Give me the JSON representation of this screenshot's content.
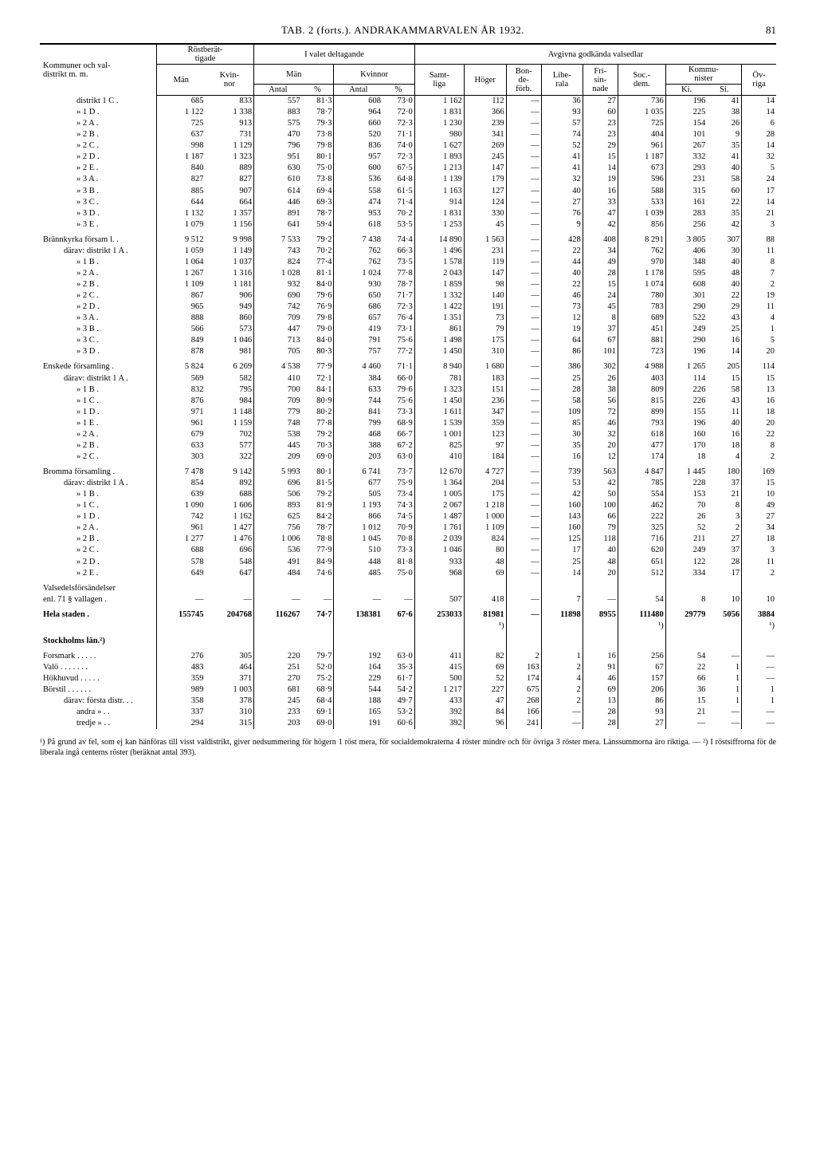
{
  "header": {
    "title": "TAB. 2 (forts.). ANDRAKAMMARVALEN ÅR 1932.",
    "page": "81"
  },
  "thead": {
    "col_kommun": "Kommuner och val-\ndistrikt m. m.",
    "rost": "Röstberät-\ntigade",
    "ivalet": "I valet deltagande",
    "avgivna": "Avgivna godkända valsedlar",
    "man": "Män",
    "kvinnor": "Kvin-\nnor",
    "man2": "Män",
    "kvinnor2": "Kvinnor",
    "antal": "Antal",
    "pct": "%",
    "samt": "Samt-\nliga",
    "hoger": "Höger",
    "bonde": "Bon-\nde-\nförb.",
    "libe": "Libe-\nrala",
    "fri": "Fri-\nsin-\nnade",
    "soc": "Soc.-\ndem.",
    "kommu": "Kommu-\nnister",
    "ov": "Öv-\nriga",
    "ki": "Ki.",
    "si": "Si."
  },
  "rows": [
    {
      "label": "distrikt 1 C .",
      "i": 2,
      "d": [
        "685",
        "833",
        "557",
        "81·3",
        "608",
        "73·0",
        "1 162",
        "112",
        "—",
        "36",
        "27",
        "736",
        "196",
        "41",
        "14"
      ]
    },
    {
      "label": "»      1 D .",
      "i": 2,
      "d": [
        "1 122",
        "1 338",
        "883",
        "78·7",
        "964",
        "72·0",
        "1 831",
        "366",
        "—",
        "93",
        "60",
        "1 035",
        "225",
        "38",
        "14"
      ]
    },
    {
      "label": "»      2 A .",
      "i": 2,
      "d": [
        "725",
        "913",
        "575",
        "79·3",
        "660",
        "72·3",
        "1 230",
        "239",
        "—",
        "57",
        "23",
        "725",
        "154",
        "26",
        "6"
      ]
    },
    {
      "label": "»      2 B .",
      "i": 2,
      "d": [
        "637",
        "731",
        "470",
        "73·8",
        "520",
        "71·1",
        "980",
        "341",
        "—",
        "74",
        "23",
        "404",
        "101",
        "9",
        "28"
      ]
    },
    {
      "label": "»      2 C .",
      "i": 2,
      "d": [
        "998",
        "1 129",
        "796",
        "79·8",
        "836",
        "74·0",
        "1 627",
        "269",
        "—",
        "52",
        "29",
        "961",
        "267",
        "35",
        "14"
      ]
    },
    {
      "label": "»      2 D .",
      "i": 2,
      "d": [
        "1 187",
        "1 323",
        "951",
        "80·1",
        "957",
        "72·3",
        "1 893",
        "245",
        "—",
        "41",
        "15",
        "1 187",
        "332",
        "41",
        "32"
      ]
    },
    {
      "label": "»      2 E .",
      "i": 2,
      "d": [
        "840",
        "889",
        "630",
        "75·0",
        "600",
        "67·5",
        "1 213",
        "147",
        "—",
        "41",
        "14",
        "673",
        "293",
        "40",
        "5"
      ]
    },
    {
      "label": "»      3 A .",
      "i": 2,
      "d": [
        "827",
        "827",
        "610",
        "73·8",
        "536",
        "64·8",
        "1 139",
        "179",
        "—",
        "32",
        "19",
        "596",
        "231",
        "58",
        "24"
      ]
    },
    {
      "label": "»      3 B .",
      "i": 2,
      "d": [
        "885",
        "907",
        "614",
        "69·4",
        "558",
        "61·5",
        "1 163",
        "127",
        "—",
        "40",
        "16",
        "588",
        "315",
        "60",
        "17"
      ]
    },
    {
      "label": "»      3 C .",
      "i": 2,
      "d": [
        "644",
        "664",
        "446",
        "69·3",
        "474",
        "71·4",
        "914",
        "124",
        "—",
        "27",
        "33",
        "533",
        "161",
        "22",
        "14"
      ]
    },
    {
      "label": "»      3 D .",
      "i": 2,
      "d": [
        "1 132",
        "1 357",
        "891",
        "78·7",
        "953",
        "70·2",
        "1 831",
        "330",
        "—",
        "76",
        "47",
        "1 039",
        "283",
        "35",
        "21"
      ]
    },
    {
      "label": "»      3 E .",
      "i": 2,
      "d": [
        "1 079",
        "1 156",
        "641",
        "59·4",
        "618",
        "53·5",
        "1 253",
        "45",
        "—",
        "9",
        "42",
        "856",
        "256",
        "42",
        "3"
      ]
    },
    {
      "label": "Brännkyrka försam l. .",
      "i": 0,
      "gap": true,
      "d": [
        "9 512",
        "9 998",
        "7 533",
        "79·2",
        "7 438",
        "74·4",
        "14 890",
        "1 563",
        "—",
        "428",
        "408",
        "8 291",
        "3 805",
        "307",
        "88"
      ]
    },
    {
      "label": "därav: distrikt 1 A .",
      "i": 1,
      "d": [
        "1 059",
        "1 149",
        "743",
        "70·2",
        "762",
        "66·3",
        "1 496",
        "231",
        "—",
        "22",
        "34",
        "762",
        "406",
        "30",
        "11"
      ]
    },
    {
      "label": "»      1 B .",
      "i": 2,
      "d": [
        "1 064",
        "1 037",
        "824",
        "77·4",
        "762",
        "73·5",
        "1 578",
        "119",
        "—",
        "44",
        "49",
        "970",
        "348",
        "40",
        "8"
      ]
    },
    {
      "label": "»      2 A .",
      "i": 2,
      "d": [
        "1 267",
        "1 316",
        "1 028",
        "81·1",
        "1 024",
        "77·8",
        "2 043",
        "147",
        "—",
        "40",
        "28",
        "1 178",
        "595",
        "48",
        "7"
      ]
    },
    {
      "label": "»      2 B .",
      "i": 2,
      "d": [
        "1 109",
        "1 181",
        "932",
        "84·0",
        "930",
        "78·7",
        "1 859",
        "98",
        "—",
        "22",
        "15",
        "1 074",
        "608",
        "40",
        "2"
      ]
    },
    {
      "label": "»      2 C .",
      "i": 2,
      "d": [
        "867",
        "906",
        "690",
        "79·6",
        "650",
        "71·7",
        "1 332",
        "140",
        "—",
        "46",
        "24",
        "780",
        "301",
        "22",
        "19"
      ]
    },
    {
      "label": "»      2 D .",
      "i": 2,
      "d": [
        "965",
        "949",
        "742",
        "76·9",
        "686",
        "72·3",
        "1 422",
        "191",
        "—",
        "73",
        "45",
        "783",
        "290",
        "29",
        "11"
      ]
    },
    {
      "label": "»      3 A .",
      "i": 2,
      "d": [
        "888",
        "860",
        "709",
        "79·8",
        "657",
        "76·4",
        "1 351",
        "73",
        "—",
        "12",
        "8",
        "689",
        "522",
        "43",
        "4"
      ]
    },
    {
      "label": "»      3 B .",
      "i": 2,
      "d": [
        "566",
        "573",
        "447",
        "79·0",
        "419",
        "73·1",
        "861",
        "79",
        "—",
        "19",
        "37",
        "451",
        "249",
        "25",
        "1"
      ]
    },
    {
      "label": "»      3 C .",
      "i": 2,
      "d": [
        "849",
        "1 046",
        "713",
        "84·0",
        "791",
        "75·6",
        "1 498",
        "175",
        "—",
        "64",
        "67",
        "881",
        "290",
        "16",
        "5"
      ]
    },
    {
      "label": "»      3 D .",
      "i": 2,
      "d": [
        "878",
        "981",
        "705",
        "80·3",
        "757",
        "77·2",
        "1 450",
        "310",
        "—",
        "86",
        "101",
        "723",
        "196",
        "14",
        "20"
      ]
    },
    {
      "label": "Enskede församling .",
      "i": 0,
      "gap": true,
      "d": [
        "5 824",
        "6 269",
        "4 538",
        "77·9",
        "4 460",
        "71·1",
        "8 940",
        "1 680",
        "—",
        "386",
        "302",
        "4 988",
        "1 265",
        "205",
        "114"
      ]
    },
    {
      "label": "därav: distrikt 1 A .",
      "i": 1,
      "d": [
        "569",
        "582",
        "410",
        "72·1",
        "384",
        "66·0",
        "781",
        "183",
        "—",
        "25",
        "26",
        "403",
        "114",
        "15",
        "15"
      ]
    },
    {
      "label": "»      1 B .",
      "i": 2,
      "d": [
        "832",
        "795",
        "700",
        "84·1",
        "633",
        "79·6",
        "1 323",
        "151",
        "—",
        "28",
        "38",
        "809",
        "226",
        "58",
        "13"
      ]
    },
    {
      "label": "»      1 C .",
      "i": 2,
      "d": [
        "876",
        "984",
        "709",
        "80·9",
        "744",
        "75·6",
        "1 450",
        "236",
        "—",
        "58",
        "56",
        "815",
        "226",
        "43",
        "16"
      ]
    },
    {
      "label": "»      1 D .",
      "i": 2,
      "d": [
        "971",
        "1 148",
        "779",
        "80·2",
        "841",
        "73·3",
        "1 611",
        "347",
        "—",
        "109",
        "72",
        "899",
        "155",
        "11",
        "18"
      ]
    },
    {
      "label": "»      1 E .",
      "i": 2,
      "d": [
        "961",
        "1 159",
        "748",
        "77·8",
        "799",
        "68·9",
        "1 539",
        "359",
        "—",
        "85",
        "46",
        "793",
        "196",
        "40",
        "20"
      ]
    },
    {
      "label": "»      2 A .",
      "i": 2,
      "d": [
        "679",
        "702",
        "538",
        "79·2",
        "468",
        "66·7",
        "1 001",
        "123",
        "—",
        "30",
        "32",
        "618",
        "160",
        "16",
        "22"
      ]
    },
    {
      "label": "»      2 B .",
      "i": 2,
      "d": [
        "633",
        "577",
        "445",
        "70·3",
        "388",
        "67·2",
        "825",
        "97",
        "—",
        "35",
        "20",
        "477",
        "170",
        "18",
        "8"
      ]
    },
    {
      "label": "»      2 C .",
      "i": 2,
      "d": [
        "303",
        "322",
        "209",
        "69·0",
        "203",
        "63·0",
        "410",
        "184",
        "—",
        "16",
        "12",
        "174",
        "18",
        "4",
        "2"
      ]
    },
    {
      "label": "Bromma församling .",
      "i": 0,
      "gap": true,
      "d": [
        "7 478",
        "9 142",
        "5 993",
        "80·1",
        "6 741",
        "73·7",
        "12 670",
        "4 727",
        "—",
        "739",
        "563",
        "4 847",
        "1 445",
        "180",
        "169"
      ]
    },
    {
      "label": "därav: distrikt 1 A .",
      "i": 1,
      "d": [
        "854",
        "892",
        "696",
        "81·5",
        "677",
        "75·9",
        "1 364",
        "204",
        "—",
        "53",
        "42",
        "785",
        "228",
        "37",
        "15"
      ]
    },
    {
      "label": "»      1 B .",
      "i": 2,
      "d": [
        "639",
        "688",
        "506",
        "79·2",
        "505",
        "73·4",
        "1 005",
        "175",
        "—",
        "42",
        "50",
        "554",
        "153",
        "21",
        "10"
      ]
    },
    {
      "label": "»      1 C .",
      "i": 2,
      "d": [
        "1 090",
        "1 606",
        "893",
        "81·9",
        "1 193",
        "74·3",
        "2 067",
        "1 218",
        "—",
        "160",
        "100",
        "462",
        "70",
        "8",
        "49"
      ]
    },
    {
      "label": "»      1 D .",
      "i": 2,
      "d": [
        "742",
        "1 162",
        "625",
        "84·2",
        "866",
        "74·5",
        "1 487",
        "1 000",
        "—",
        "143",
        "66",
        "222",
        "26",
        "3",
        "27"
      ]
    },
    {
      "label": "»      2 A .",
      "i": 2,
      "d": [
        "961",
        "1 427",
        "756",
        "78·7",
        "1 012",
        "70·9",
        "1 761",
        "1 109",
        "—",
        "160",
        "79",
        "325",
        "52",
        "2",
        "34"
      ]
    },
    {
      "label": "»      2 B .",
      "i": 2,
      "d": [
        "1 277",
        "1 476",
        "1 006",
        "78·8",
        "1 045",
        "70·8",
        "2 039",
        "824",
        "—",
        "125",
        "118",
        "716",
        "211",
        "27",
        "18"
      ]
    },
    {
      "label": "»      2 C .",
      "i": 2,
      "d": [
        "688",
        "696",
        "536",
        "77·9",
        "510",
        "73·3",
        "1 046",
        "80",
        "—",
        "17",
        "40",
        "620",
        "249",
        "37",
        "3"
      ]
    },
    {
      "label": "»      2 D .",
      "i": 2,
      "d": [
        "578",
        "548",
        "491",
        "84·9",
        "448",
        "81·8",
        "933",
        "48",
        "—",
        "25",
        "48",
        "651",
        "122",
        "28",
        "11"
      ]
    },
    {
      "label": "»      2 E .",
      "i": 2,
      "d": [
        "649",
        "647",
        "484",
        "74·6",
        "485",
        "75·0",
        "968",
        "69",
        "—",
        "14",
        "20",
        "512",
        "334",
        "17",
        "2"
      ]
    },
    {
      "label": "Valsedelsförsändelser",
      "i": 0,
      "gap": true,
      "d": [
        "",
        "",
        "",
        "",
        "",
        "",
        "",
        "",
        "",
        "",
        "",
        "",
        "",
        "",
        ""
      ]
    },
    {
      "label": "enl. 71 § vallagen .",
      "i": 0,
      "d": [
        "—",
        "—",
        "—",
        "—",
        "—",
        "—",
        "507",
        "418",
        "—",
        "7",
        "—",
        "54",
        "8",
        "10",
        "10"
      ]
    },
    {
      "label": "Hela staden .",
      "i": 0,
      "bold": true,
      "gap": true,
      "d": [
        "155745",
        "204768",
        "116267",
        "74·7",
        "138381",
        "67·6",
        "253033",
        "81981",
        "—",
        "11898",
        "8955",
        "111480",
        "29779",
        "5056",
        "3884"
      ]
    },
    {
      "label": "",
      "i": 0,
      "d": [
        "",
        "",
        "",
        "",
        "",
        "",
        "",
        "¹)",
        "",
        "",
        "",
        "¹)",
        "",
        "",
        "¹)"
      ]
    },
    {
      "label": "Stockholms län.²)",
      "i": 0,
      "bold": true,
      "gap": true,
      "d": [
        "",
        "",
        "",
        "",
        "",
        "",
        "",
        "",
        "",
        "",
        "",
        "",
        "",
        "",
        ""
      ]
    },
    {
      "label": "Forsmark . . . . .",
      "i": 0,
      "gap": true,
      "d": [
        "276",
        "305",
        "220",
        "79·7",
        "192",
        "63·0",
        "411",
        "82",
        "2",
        "1",
        "16",
        "256",
        "54",
        "—",
        "—"
      ]
    },
    {
      "label": "Valö . . . . . . .",
      "i": 0,
      "d": [
        "483",
        "464",
        "251",
        "52·0",
        "164",
        "35·3",
        "415",
        "69",
        "163",
        "2",
        "91",
        "67",
        "22",
        "1",
        "—"
      ]
    },
    {
      "label": "Hökhuvud . . . . .",
      "i": 0,
      "d": [
        "359",
        "371",
        "270",
        "75·2",
        "229",
        "61·7",
        "500",
        "52",
        "174",
        "4",
        "46",
        "157",
        "66",
        "1",
        "—"
      ]
    },
    {
      "label": "Börstil . . . . . .",
      "i": 0,
      "d": [
        "989",
        "1 003",
        "681",
        "68·9",
        "544",
        "54·2",
        "1 217",
        "227",
        "675",
        "2",
        "69",
        "206",
        "36",
        "1",
        "1"
      ]
    },
    {
      "label": "därav: första distr. . .",
      "i": 1,
      "d": [
        "358",
        "378",
        "245",
        "68·4",
        "188",
        "49·7",
        "433",
        "47",
        "268",
        "2",
        "13",
        "86",
        "15",
        "1",
        "1"
      ]
    },
    {
      "label": "andra  »   . .",
      "i": 2,
      "d": [
        "337",
        "310",
        "233",
        "69·1",
        "165",
        "53·2",
        "392",
        "84",
        "166",
        "—",
        "28",
        "93",
        "21",
        "—",
        "—"
      ]
    },
    {
      "label": "tredje  »   . .",
      "i": 2,
      "d": [
        "294",
        "315",
        "203",
        "69·0",
        "191",
        "60·6",
        "392",
        "96",
        "241",
        "—",
        "28",
        "27",
        "—",
        "—",
        "—"
      ]
    }
  ],
  "footnote": "¹) På grund av fel, som ej kan hänföras till visst valdistrikt, giver nedsummering för högern 1 röst mera, för socialdemokraterna 4 röster mindre och för övriga 3 röster mera. Länssummorna äro riktiga. — ²) I röstsiffrorna för de liberala ingå centerns röster (beräknat antal 393)."
}
